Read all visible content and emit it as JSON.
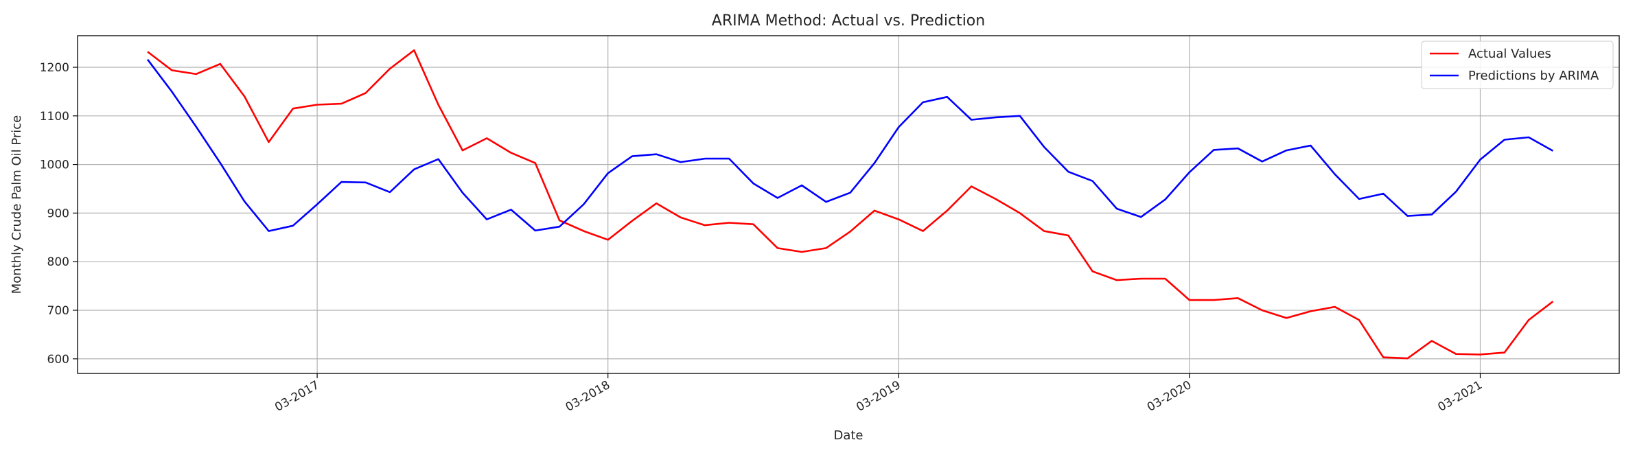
{
  "chart_data": {
    "type": "line",
    "title": "ARIMA Method: Actual vs. Prediction",
    "xlabel": "Date",
    "ylabel": "Monthly Crude Palm Oil Price",
    "x_start": "2016-08",
    "x_ticks": [
      "03-2017",
      "03-2018",
      "03-2019",
      "03-2020",
      "03-2021"
    ],
    "y_ticks": [
      600,
      700,
      800,
      900,
      1000,
      1100,
      1200
    ],
    "ylim": [
      570,
      1265
    ],
    "grid": true,
    "legend_position": "top-right",
    "series": [
      {
        "name": "Actual Values",
        "color": "#ff0000",
        "values": [
          1232,
          1194,
          1186,
          1207,
          1140,
          1046,
          1115,
          1123,
          1125,
          1147,
          1197,
          1235,
          1123,
          1029,
          1054,
          1024,
          1003,
          885,
          863,
          845,
          884,
          920,
          891,
          875,
          880,
          877,
          828,
          820,
          828,
          862,
          905,
          887,
          863,
          905,
          955,
          929,
          900,
          863,
          854,
          780,
          762,
          765,
          765,
          721,
          721,
          725,
          700,
          684,
          698,
          707,
          680,
          603,
          601,
          637,
          610,
          609,
          613,
          680,
          718
        ]
      },
      {
        "name": "Predictions by ARIMA",
        "color": "#0000ff",
        "values": [
          1216,
          1150,
          1078,
          1003,
          924,
          863,
          874,
          918,
          964,
          963,
          943,
          990,
          1011,
          942,
          887,
          907,
          864,
          872,
          918,
          982,
          1017,
          1021,
          1005,
          1012,
          1012,
          961,
          931,
          957,
          923,
          942,
          1003,
          1077,
          1128,
          1139,
          1092,
          1097,
          1100,
          1036,
          985,
          966,
          909,
          892,
          928,
          984,
          1030,
          1033,
          1006,
          1029,
          1039,
          980,
          929,
          940,
          894,
          897,
          944,
          1010,
          1051,
          1056,
          1028
        ]
      }
    ]
  }
}
